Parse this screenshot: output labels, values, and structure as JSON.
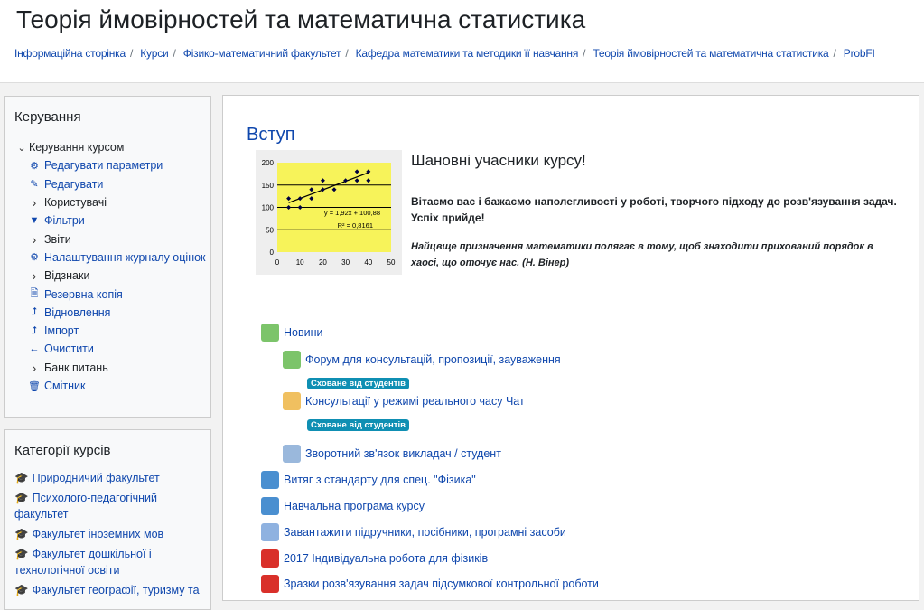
{
  "header": {
    "title": "Теорія ймовірностей та математична статистика",
    "breadcrumbs": [
      "Інформаційна сторінка",
      "Курси",
      "Фізико-математичний факультет",
      "Кафедра математики та методики її навчання",
      "Теорія ймовірностей та математична статистика",
      "ProbFI"
    ]
  },
  "admin": {
    "title": "Керування",
    "course_admin": "Керування курсом",
    "items": [
      {
        "label": "Редагувати параметри",
        "icon": "gear-icon"
      },
      {
        "label": "Редагувати",
        "icon": "pencil-icon"
      },
      {
        "label": "Користувачі",
        "icon": "chevron-right-icon"
      },
      {
        "label": "Фільтри",
        "icon": "filter-icon"
      },
      {
        "label": "Звіти",
        "icon": "chevron-right-icon"
      },
      {
        "label": "Налаштування журналу оцінок",
        "icon": "gear-icon"
      },
      {
        "label": "Відзнаки",
        "icon": "chevron-right-icon"
      },
      {
        "label": "Резервна копія",
        "icon": "file-icon"
      },
      {
        "label": "Відновлення",
        "icon": "upload-icon"
      },
      {
        "label": "Імпорт",
        "icon": "upload-icon"
      },
      {
        "label": "Очистити",
        "icon": "arrow-left-icon"
      },
      {
        "label": "Банк питань",
        "icon": "chevron-right-icon"
      },
      {
        "label": "Смітник",
        "icon": "trash-icon"
      }
    ]
  },
  "categories": {
    "title": "Категорії курсів",
    "items": [
      "Природничий факультет",
      "Психолого-педагогічний факультет",
      "Факультет іноземних мов",
      "Факультет дошкільної і технологічної освіти",
      "Факультет географії, туризму та"
    ]
  },
  "section": {
    "title": "Вступ",
    "greeting": "Шановні учасники курсу!",
    "welcome": "Вітаємо вас і бажаємо наполегливості у роботі, творчого підходу до розв'язування задач. Успіх прийде!",
    "quote": "Найцвще призначення математики полягає в тому, щоб знаходити прихований порядок в хаосі, що оточує нас. (Н. Вінер)"
  },
  "chart_data": {
    "type": "scatter",
    "equation": "y = 1,92x + 100,88",
    "r2": "R² = 0,8161",
    "xlim": [
      0,
      50
    ],
    "ylim": [
      0,
      200
    ],
    "xticks": [
      "0",
      "10",
      "20",
      "30",
      "40",
      "50"
    ],
    "yticks": [
      "0",
      "50",
      "100",
      "150",
      "200"
    ],
    "points": [
      [
        5,
        100
      ],
      [
        5,
        120
      ],
      [
        10,
        100
      ],
      [
        10,
        120
      ],
      [
        15,
        120
      ],
      [
        15,
        140
      ],
      [
        20,
        140
      ],
      [
        20,
        160
      ],
      [
        25,
        140
      ],
      [
        30,
        160
      ],
      [
        35,
        160
      ],
      [
        35,
        180
      ],
      [
        40,
        160
      ],
      [
        40,
        180
      ]
    ],
    "trend": {
      "slope": 1.92,
      "intercept": 100.88
    },
    "background": "#f7f35a"
  },
  "activities": [
    {
      "label": "Новини",
      "icon": "forum-icon"
    },
    {
      "label": "Форум для консультацій, пропозиції, зауваження",
      "icon": "forum-icon",
      "badge": "Сховане від студентів"
    },
    {
      "label": "Консультації у режимі реального часу Чат",
      "icon": "chat-icon",
      "badge": "Сховане від студентів"
    },
    {
      "label": "Зворотний зв'язок викладач / студент",
      "icon": "feedback-icon"
    },
    {
      "label": "Витяг з стандарту для спец. \"Фізика\"",
      "icon": "url-icon"
    },
    {
      "label": "Навчальна програма курсу",
      "icon": "url-icon"
    },
    {
      "label": "Завантажити підручники, посібники, програмні засоби",
      "icon": "page-icon"
    },
    {
      "label": "2017 Індивідуальна робота для фізиків",
      "icon": "pdf-icon"
    },
    {
      "label": "Зразки розв'язування задач підсумкової контрольної роботи",
      "icon": "pdf-icon"
    }
  ]
}
